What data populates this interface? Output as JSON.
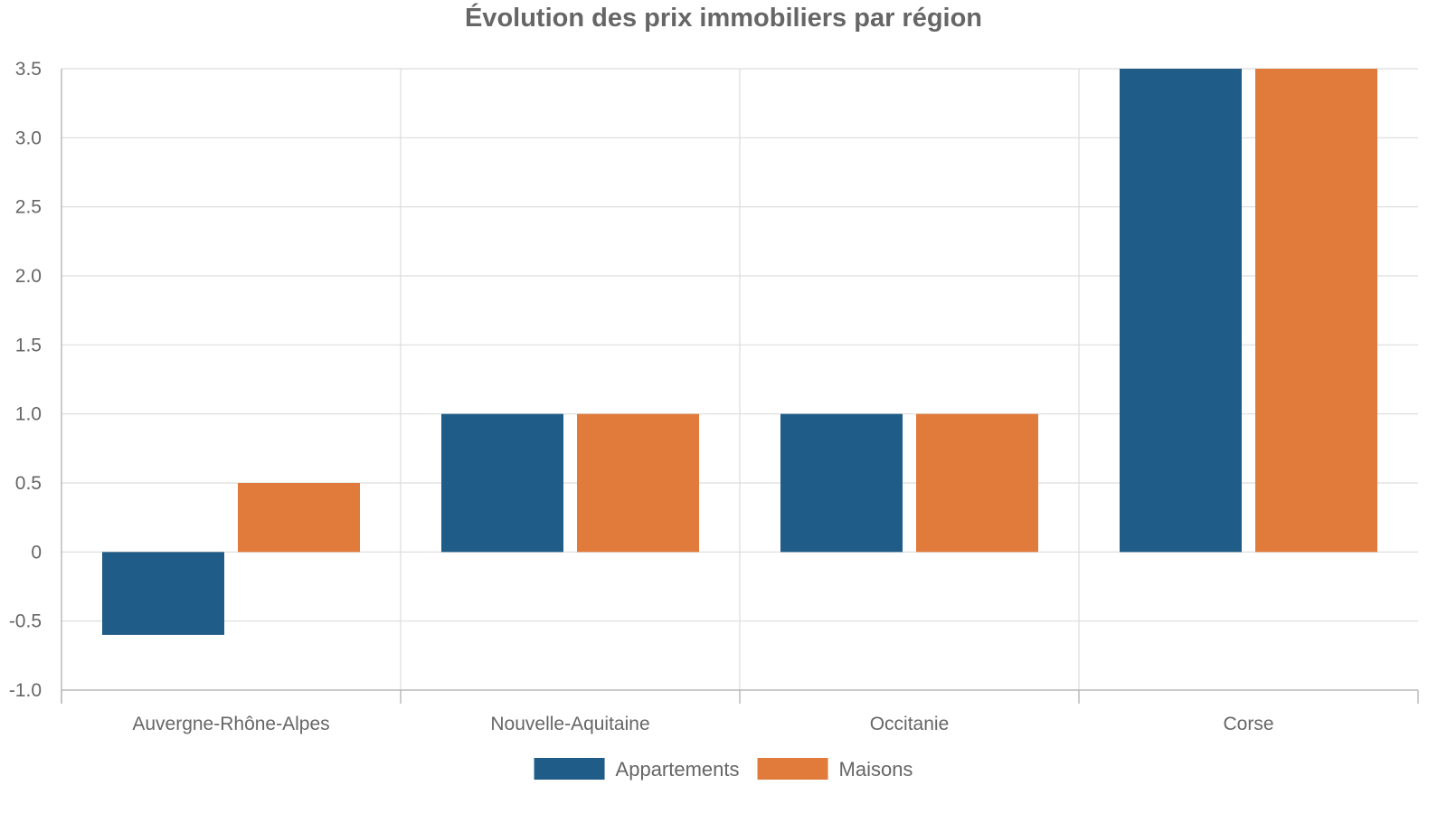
{
  "chart_data": {
    "type": "bar",
    "title": "Évolution des prix immobiliers par région",
    "xlabel": "",
    "ylabel": "",
    "categories": [
      "Auvergne-Rhône-Alpes",
      "Nouvelle-Aquitaine",
      "Occitanie",
      "Corse"
    ],
    "series": [
      {
        "name": "Appartements",
        "color": "#1f5c87",
        "values": [
          -0.6,
          1.0,
          1.0,
          3.5
        ]
      },
      {
        "name": "Maisons",
        "color": "#e07b3c",
        "values": [
          0.5,
          1.0,
          1.0,
          3.5
        ]
      }
    ],
    "ylim": [
      -1.0,
      3.5
    ],
    "yticks": [
      -1.0,
      -0.5,
      0,
      0.5,
      1.0,
      1.5,
      2.0,
      2.5,
      3.0,
      3.5
    ],
    "ytick_labels": [
      "-1.0",
      "-0.5",
      "0",
      "0.5",
      "1.0",
      "1.5",
      "2.0",
      "2.5",
      "3.0",
      "3.5"
    ],
    "grid": true,
    "legend_position": "bottom-center"
  }
}
